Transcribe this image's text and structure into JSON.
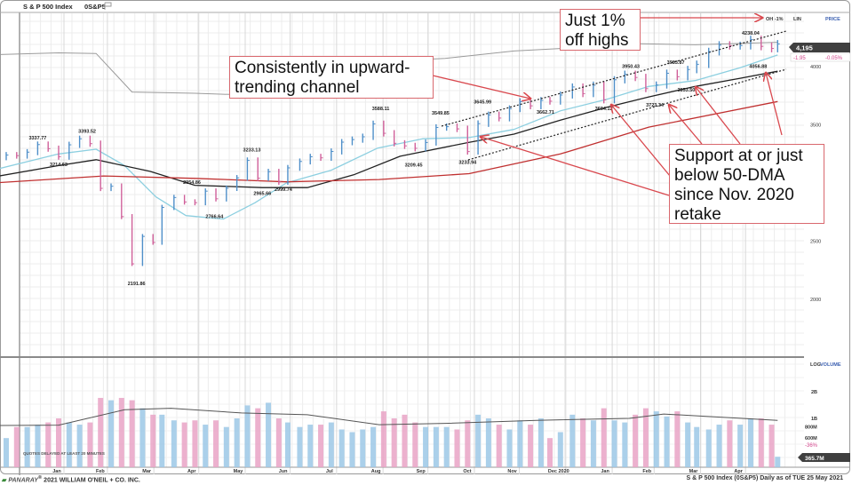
{
  "header": {
    "title": "S & P 500 Index",
    "symbol": "0S&P5",
    "flag_icon": "flag-icon"
  },
  "right_panel": {
    "off_high": "OH -1%",
    "scale_mode": "LIN",
    "panel_label": "PRICE",
    "last_price": "4,195",
    "change": "-1.95",
    "change_pct": "-0.05%",
    "volume_scale_mode": "LOG",
    "volume_label": "VOLUME",
    "volume_change_pct": "-36%",
    "last_volume": "365.7M"
  },
  "notice": "QUOTES DELAYED AT LEAST 20 MINUTES",
  "footer": {
    "brand": "PANARAY",
    "copyright": "2021 WILLIAM O'NEIL + CO. INC.",
    "caption": "S & P 500 Index (0S&P5) Daily as of TUE 25 May 2021"
  },
  "callouts": {
    "highs": "Just 1% off highs",
    "channel": "Consistently in upward-trending channel",
    "support": "Support at or just below 50-DMA since Nov. 2020 retake"
  },
  "colors": {
    "up": "#4f8fc9",
    "down": "#d0609a",
    "ma50": "#8ccfe0",
    "ma_black": "#222222",
    "ma_red": "#c03030",
    "rs": "#9a9a9a",
    "annotation": "#d9484e",
    "vol_up": "#9cc8e6",
    "vol_down": "#e9a3c6"
  },
  "chart_data": [
    {
      "type": "bar",
      "subtype": "ohlc-price",
      "title": "S & P 500 Index",
      "ylabel": "",
      "yscale": "linear",
      "y_ticks": [
        2000,
        2500,
        3500,
        4000
      ],
      "ylim": [
        1800,
        4300
      ],
      "x_tick_labels": [
        "Jan",
        "Feb",
        "Mar",
        "Apr",
        "May",
        "Jun",
        "Jul",
        "Aug",
        "Sep",
        "Oct",
        "Nov",
        "Dec 2020",
        "Jan",
        "Feb",
        "Mar",
        "Apr"
      ],
      "grid": true,
      "dates": [
        "2019-12-20",
        "2019-12-27",
        "2020-01-03",
        "2020-01-10",
        "2020-01-17",
        "2020-01-24",
        "2020-01-31",
        "2020-02-07",
        "2020-02-14",
        "2020-02-21",
        "2020-02-28",
        "2020-03-06",
        "2020-03-13",
        "2020-03-20",
        "2020-03-27",
        "2020-04-03",
        "2020-04-09",
        "2020-04-17",
        "2020-04-24",
        "2020-05-01",
        "2020-05-08",
        "2020-05-15",
        "2020-05-22",
        "2020-05-29",
        "2020-06-05",
        "2020-06-12",
        "2020-06-19",
        "2020-06-26",
        "2020-07-02",
        "2020-07-10",
        "2020-07-17",
        "2020-07-24",
        "2020-07-31",
        "2020-08-07",
        "2020-08-14",
        "2020-08-21",
        "2020-08-28",
        "2020-09-04",
        "2020-09-11",
        "2020-09-18",
        "2020-09-25",
        "2020-10-02",
        "2020-10-09",
        "2020-10-16",
        "2020-10-23",
        "2020-10-30",
        "2020-11-06",
        "2020-11-13",
        "2020-11-20",
        "2020-11-27",
        "2020-12-04",
        "2020-12-11",
        "2020-12-18",
        "2020-12-24",
        "2020-12-31",
        "2021-01-08",
        "2021-01-15",
        "2021-01-22",
        "2021-01-29",
        "2021-02-05",
        "2021-02-12",
        "2021-02-19",
        "2021-02-26",
        "2021-03-05",
        "2021-03-12",
        "2021-03-19",
        "2021-03-26",
        "2021-04-01",
        "2021-04-09",
        "2021-04-16",
        "2021-04-23",
        "2021-04-30",
        "2021-05-07",
        "2021-05-14",
        "2021-05-21",
        "2021-05-25"
      ],
      "close": [
        3221,
        3240,
        3235,
        3265,
        3330,
        3295,
        3226,
        3328,
        3380,
        3338,
        2954,
        2972,
        2711,
        2305,
        2541,
        2489,
        2790,
        2875,
        2837,
        2831,
        2930,
        2864,
        2955,
        3044,
        3194,
        3041,
        3097,
        3009,
        3130,
        3185,
        3225,
        3216,
        3271,
        3351,
        3373,
        3397,
        3508,
        3427,
        3341,
        3319,
        3298,
        3348,
        3477,
        3484,
        3465,
        3270,
        3510,
        3585,
        3558,
        3638,
        3699,
        3663,
        3709,
        3703,
        3756,
        3825,
        3768,
        3841,
        3714,
        3887,
        3934,
        3907,
        3811,
        3842,
        3943,
        3913,
        3975,
        4020,
        4129,
        4185,
        4180,
        4181,
        4232,
        4174,
        4156,
        4195
      ],
      "labels": [
        {
          "text": "3337.77",
          "date": "2020-01-17",
          "value": 3337.77,
          "kind": "high"
        },
        {
          "text": "3393.52",
          "date": "2020-02-19",
          "value": 3393.52,
          "kind": "high"
        },
        {
          "text": "3214.63",
          "date": "2020-01-31",
          "value": 3214.63,
          "kind": "low"
        },
        {
          "text": "2191.86",
          "date": "2020-03-23",
          "value": 2191.86,
          "kind": "low"
        },
        {
          "text": "2954.86",
          "date": "2020-04-29",
          "value": 2954.86,
          "kind": "high"
        },
        {
          "text": "2766.64",
          "date": "2020-05-14",
          "value": 2766.64,
          "kind": "low"
        },
        {
          "text": "3233.13",
          "date": "2020-06-08",
          "value": 3233.13,
          "kind": "high"
        },
        {
          "text": "2965.66",
          "date": "2020-06-15",
          "value": 2965.66,
          "kind": "low"
        },
        {
          "text": "2999.74",
          "date": "2020-06-29",
          "value": 2999.74,
          "kind": "low"
        },
        {
          "text": "3588.11",
          "date": "2020-09-02",
          "value": 3588.11,
          "kind": "high"
        },
        {
          "text": "3209.45",
          "date": "2020-09-24",
          "value": 3209.45,
          "kind": "low"
        },
        {
          "text": "3549.85",
          "date": "2020-10-12",
          "value": 3549.85,
          "kind": "high"
        },
        {
          "text": "3233.94",
          "date": "2020-10-30",
          "value": 3233.94,
          "kind": "low"
        },
        {
          "text": "3645.99",
          "date": "2020-11-09",
          "value": 3645.99,
          "kind": "high"
        },
        {
          "text": "3662.71",
          "date": "2020-12-21",
          "value": 3662.71,
          "kind": "low"
        },
        {
          "text": "3694.12",
          "date": "2021-01-29",
          "value": 3694.12,
          "kind": "low"
        },
        {
          "text": "3950.43",
          "date": "2021-02-16",
          "value": 3950.43,
          "kind": "high"
        },
        {
          "text": "3723.34",
          "date": "2021-03-04",
          "value": 3723.34,
          "kind": "low"
        },
        {
          "text": "3983.87",
          "date": "2021-03-18",
          "value": 3983.87,
          "kind": "high"
        },
        {
          "text": "3853.50",
          "date": "2021-03-25",
          "value": 3853.5,
          "kind": "low"
        },
        {
          "text": "4238.04",
          "date": "2021-05-07",
          "value": 4238.04,
          "kind": "high"
        },
        {
          "text": "4056.88",
          "date": "2021-05-12",
          "value": 4056.88,
          "kind": "low"
        }
      ],
      "moving_averages": [
        {
          "name": "50-DMA",
          "color": "#8ccfe0",
          "dates": [
            "2019-12-18",
            "2020-01-31",
            "2020-02-25",
            "2020-03-15",
            "2020-04-05",
            "2020-04-25",
            "2020-05-20",
            "2020-06-10",
            "2020-07-01",
            "2020-07-31",
            "2020-08-31",
            "2020-09-30",
            "2020-10-31",
            "2020-11-30",
            "2020-12-31",
            "2021-01-31",
            "2021-02-28",
            "2021-03-31",
            "2021-04-30",
            "2021-05-25"
          ],
          "values": [
            3110,
            3250,
            3290,
            3150,
            2880,
            2720,
            2690,
            2830,
            3000,
            3110,
            3300,
            3380,
            3390,
            3460,
            3620,
            3720,
            3830,
            3880,
            3990,
            4100
          ]
        },
        {
          "color": "#222222",
          "dates": [
            "2019-12-18",
            "2020-01-31",
            "2020-02-25",
            "2020-04-01",
            "2020-05-01",
            "2020-06-15",
            "2020-07-15",
            "2020-08-15",
            "2020-09-15",
            "2020-10-31",
            "2020-11-30",
            "2020-12-31",
            "2021-01-31",
            "2021-02-28",
            "2021-03-31",
            "2021-04-30",
            "2021-05-25"
          ],
          "values": [
            3050,
            3150,
            3200,
            3100,
            2980,
            2960,
            2960,
            3070,
            3230,
            3350,
            3420,
            3540,
            3650,
            3740,
            3830,
            3900,
            3960
          ]
        },
        {
          "color": "#c03030",
          "dates": [
            "2019-12-18",
            "2020-03-01",
            "2020-05-01",
            "2020-07-01",
            "2020-09-01",
            "2020-10-31",
            "2020-12-31",
            "2021-02-28",
            "2021-05-25"
          ],
          "values": [
            3000,
            3060,
            3040,
            3010,
            3030,
            3080,
            3250,
            3480,
            3700
          ]
        }
      ],
      "rs_line": {
        "dates": [
          "2019-12-18",
          "2020-01-31",
          "2020-02-25",
          "2020-03-20",
          "2020-05-01",
          "2020-07-01",
          "2020-08-15",
          "2020-09-10",
          "2020-10-15",
          "2020-11-30",
          "2020-12-31",
          "2021-02-15",
          "2021-03-31",
          "2021-05-25"
        ],
        "values": [
          72,
          75,
          74,
          12,
          10,
          5,
          12,
          62,
          66,
          78,
          82,
          90,
          88,
          92
        ]
      },
      "channel_lines": [
        "upper",
        "lower"
      ]
    },
    {
      "type": "bar",
      "subtype": "volume",
      "yscale": "log",
      "y_tick_labels": [
        "2B",
        "1B",
        "800M",
        "600M"
      ],
      "y_ticks": [
        2000000000,
        1000000000,
        800000000,
        600000000
      ],
      "unit": "billions",
      "values": [
        0.75,
        0.6,
        0.8,
        0.8,
        0.85,
        0.9,
        1.0,
        0.9,
        0.85,
        0.9,
        1.7,
        1.6,
        1.7,
        1.6,
        1.3,
        1.1,
        1.1,
        0.95,
        0.9,
        0.95,
        0.85,
        0.95,
        0.8,
        1.0,
        1.4,
        1.3,
        1.5,
        1.0,
        0.9,
        0.8,
        0.85,
        0.85,
        0.9,
        0.75,
        0.7,
        0.75,
        0.8,
        1.2,
        1.0,
        1.1,
        0.9,
        0.8,
        0.8,
        0.8,
        0.75,
        0.95,
        1.1,
        1.0,
        0.85,
        0.75,
        0.95,
        0.85,
        1.0,
        0.6,
        0.7,
        1.1,
        1.0,
        0.95,
        1.3,
        0.95,
        0.9,
        1.1,
        1.3,
        1.2,
        1.05,
        1.2,
        0.9,
        0.8,
        0.75,
        0.85,
        0.95,
        0.85,
        1.0,
        1.0,
        0.85,
        0.37
      ],
      "average": {
        "dates": [
          "2019-12-18",
          "2020-01-31",
          "2020-03-15",
          "2020-04-15",
          "2020-06-01",
          "2020-07-15",
          "2020-09-01",
          "2020-10-15",
          "2020-12-15",
          "2021-02-15",
          "2021-03-10",
          "2021-05-25"
        ],
        "values": [
          0.83,
          0.84,
          1.25,
          1.3,
          1.15,
          1.1,
          0.85,
          0.88,
          0.95,
          1.0,
          1.12,
          0.95
        ]
      }
    }
  ]
}
